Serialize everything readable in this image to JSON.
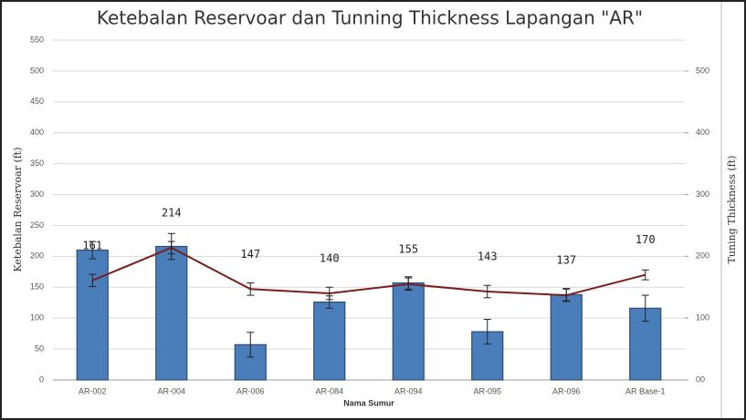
{
  "chart_data": {
    "type": "bar-line",
    "title": "Ketebalan Reservoar dan Tunning Thickness Lapangan \"AR\"",
    "x_label": "Nama Sumur",
    "y_label": "Ketebalan Reservoar (ft)",
    "y2_label": "Tuning Thickness (ft)",
    "categories": [
      "AR-002",
      "AR-004",
      "AR-006",
      "AR-084",
      "AR-094",
      "AR-095",
      "AR-096",
      "AR Base-1"
    ],
    "series": [
      {
        "name": "Ketebalan Reservoar",
        "type": "bar",
        "color": "#4a7ebb",
        "values": [
          210,
          216,
          57,
          126,
          157,
          78,
          138,
          116
        ],
        "errors": [
          14,
          21,
          20,
          10,
          10,
          20,
          10,
          21
        ]
      },
      {
        "name": "Tuning Thickness",
        "type": "line",
        "axis": "y2",
        "color": "#7a1e1e",
        "values": [
          161,
          214,
          147,
          140,
          155,
          143,
          137,
          170
        ],
        "errors": [
          10,
          10,
          10,
          10,
          10,
          10,
          10,
          8
        ]
      }
    ],
    "ylim": [
      0,
      550
    ],
    "yticks": [
      0,
      50,
      100,
      150,
      200,
      250,
      300,
      350,
      400,
      450,
      500,
      550
    ],
    "y2lim": [
      0,
      550
    ],
    "y2ticks": [
      {
        "value": 0,
        "label": "00"
      },
      100,
      200,
      300,
      400,
      500
    ],
    "grid": true
  }
}
